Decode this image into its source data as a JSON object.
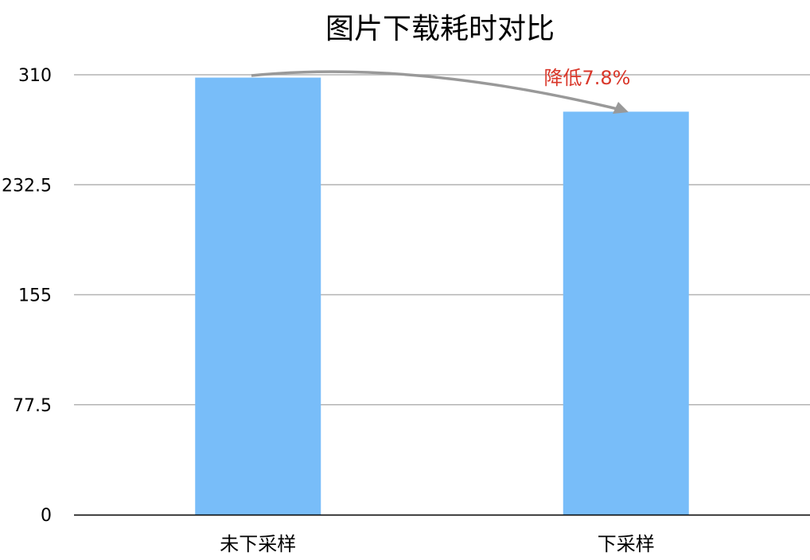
{
  "chart_data": {
    "type": "bar",
    "title": "图片下载耗时对比",
    "categories": [
      "未下采样",
      "下采样"
    ],
    "values": [
      308,
      284
    ],
    "ylim": [
      0,
      310
    ],
    "yticks": [
      "0",
      "77.5",
      "155",
      "232.5",
      "310"
    ],
    "grid": true,
    "bar_color": "#78BDF9",
    "annotation": {
      "text": "降低7.8%",
      "color": "#D9372A",
      "arrow_color": "#999999",
      "from": "未下采样",
      "to": "下采样"
    }
  }
}
